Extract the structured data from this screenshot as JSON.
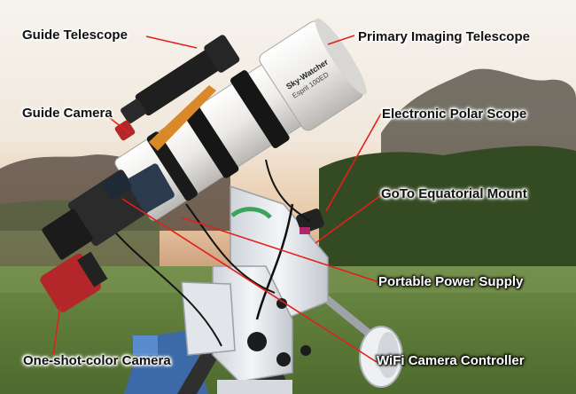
{
  "labels": {
    "guide_telescope": "Guide Telescope",
    "primary_imaging_telescope": "Primary Imaging Telescope",
    "guide_camera": "Guide Camera",
    "electronic_polar_scope": "Electronic Polar Scope",
    "goto_equatorial_mount": "GoTo Equatorial Mount",
    "portable_power_supply": "Portable Power Supply",
    "one_shot_color_camera": "One-shot-color Camera",
    "wifi_camera_controller": "WiFi Camera Controller"
  },
  "telescope_branding": {
    "brand": "Sky-Watcher",
    "model": "Esprit 100ED"
  },
  "colors": {
    "callout_line": "#e0211b",
    "tube_white": "#f2f2f0",
    "camera_red": "#b3262a",
    "mount_white": "#e9ecef",
    "ring_black": "#161616",
    "bracket_orange": "#d9892a"
  }
}
